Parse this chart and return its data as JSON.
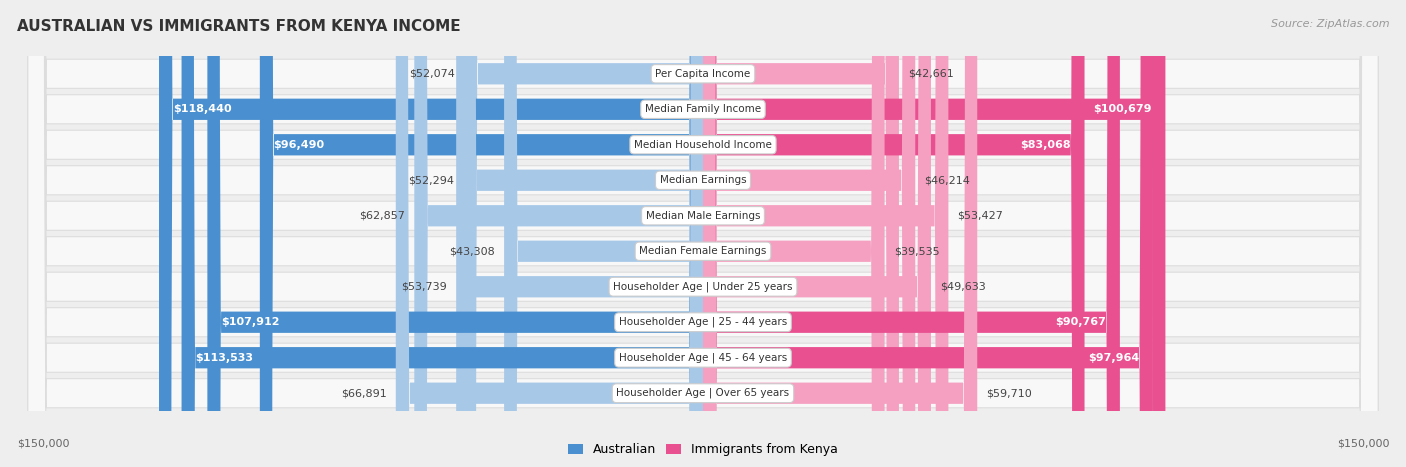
{
  "title": "Australian vs Immigrants from Kenya Income",
  "title_display": "AUSTRALIAN VS IMMIGRANTS FROM KENYA INCOME",
  "source": "Source: ZipAtlas.com",
  "categories": [
    "Per Capita Income",
    "Median Family Income",
    "Median Household Income",
    "Median Earnings",
    "Median Male Earnings",
    "Median Female Earnings",
    "Householder Age | Under 25 years",
    "Householder Age | 25 - 44 years",
    "Householder Age | 45 - 64 years",
    "Householder Age | Over 65 years"
  ],
  "australian_values": [
    52074,
    118440,
    96490,
    52294,
    62857,
    43308,
    53739,
    107912,
    113533,
    66891
  ],
  "kenya_values": [
    42661,
    100679,
    83068,
    46214,
    53427,
    39535,
    49633,
    90767,
    97964,
    59710
  ],
  "australian_labels": [
    "$52,074",
    "$118,440",
    "$96,490",
    "$52,294",
    "$62,857",
    "$43,308",
    "$53,739",
    "$107,912",
    "$113,533",
    "$66,891"
  ],
  "kenya_labels": [
    "$42,661",
    "$100,679",
    "$83,068",
    "$46,214",
    "$53,427",
    "$39,535",
    "$49,633",
    "$90,767",
    "$97,964",
    "$59,710"
  ],
  "australian_color_light": "#a8c8e8",
  "australian_color_dark": "#4a90d0",
  "kenya_color_light": "#f5a0c0",
  "kenya_color_dark": "#e85090",
  "max_value": 150000,
  "background_color": "#eeeeee",
  "row_bg_color": "#f8f8f8",
  "row_edge_color": "#dddddd",
  "label_threshold": 75000,
  "title_fontsize": 11,
  "source_fontsize": 8,
  "bar_label_fontsize": 8,
  "category_fontsize": 7.5,
  "axis_label_fontsize": 8
}
